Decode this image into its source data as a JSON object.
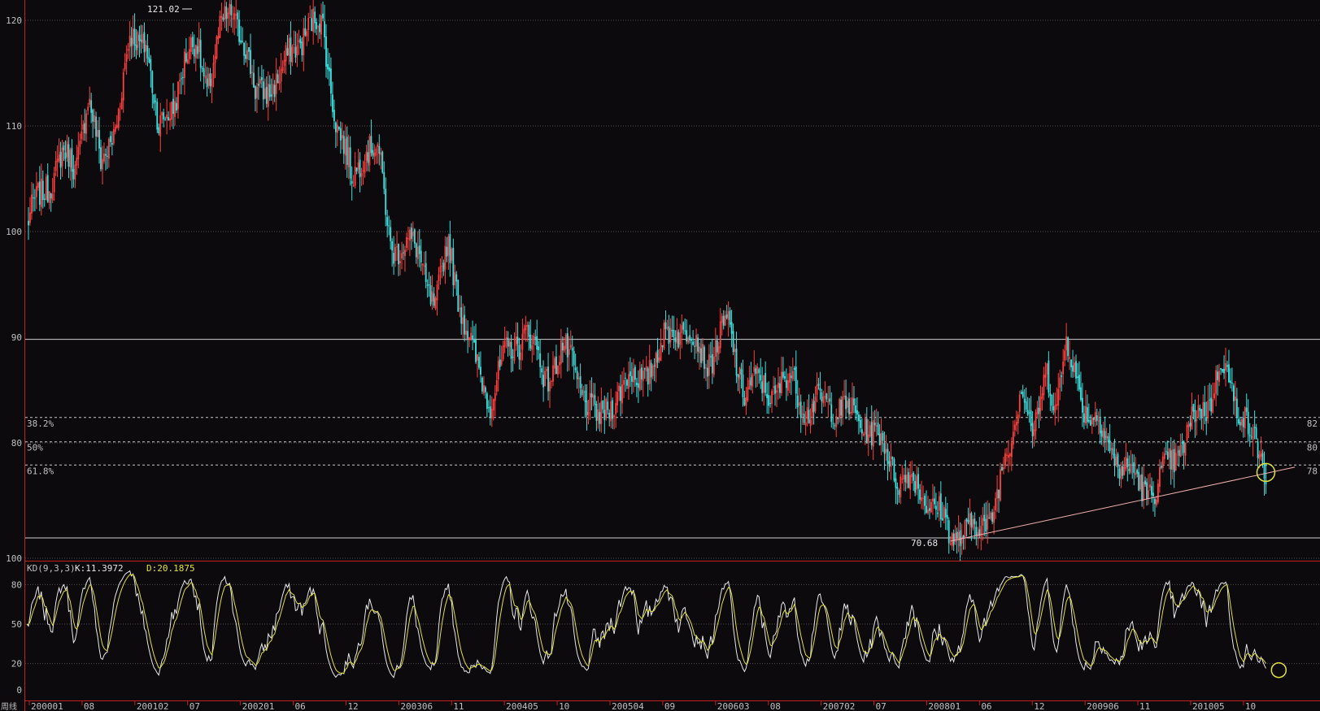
{
  "colors": {
    "background": "#0c0a0c",
    "up": "#ff4040",
    "down": "#40e0e0",
    "axis_text": "#c0c0c0",
    "grid": "#505050",
    "kdj_k": "#e8e8e8",
    "kdj_d": "#e0e040",
    "trendline": "#f0b0b0",
    "marker": "#e0e040",
    "frame": "#c02020"
  },
  "chart_data": [
    {
      "type": "candlestick",
      "period_label": "周线",
      "ylim": [
        70,
        121.5
      ],
      "yticks": [
        {
          "value": 120,
          "label": "120"
        },
        {
          "value": 110,
          "label": "110"
        },
        {
          "value": 100,
          "label": "100"
        },
        {
          "value": 90,
          "label": "90"
        },
        {
          "value": 80,
          "label": "80"
        }
      ],
      "xticks": [
        "200001",
        "08",
        "200102",
        "07",
        "200201",
        "06",
        "12",
        "200306",
        "11",
        "200405",
        "10",
        "200504",
        "09",
        "200603",
        "08",
        "200702",
        "07",
        "200801",
        "06",
        "12",
        "200906",
        "11",
        "201005",
        "10"
      ],
      "annotations": {
        "high": "121.02",
        "low": "70.68"
      },
      "fib_levels": [
        {
          "left": "38.2%",
          "right": "82",
          "value": 82.4
        },
        {
          "left": "50%",
          "right": "80",
          "value": 80.1
        },
        {
          "left": "61.8%",
          "right": "78",
          "value": 77.9
        }
      ],
      "horizontal_lines": [
        89.8,
        71
      ],
      "trendline": {
        "from": {
          "index": 574,
          "value": 70.7
        },
        "to": {
          "index": 788,
          "value": 77.7
        }
      },
      "marker_circle": {
        "index": 770,
        "value": 77.2
      },
      "weekly_close_path": [
        [
          0,
          100.5
        ],
        [
          12,
          104.5
        ],
        [
          22,
          107
        ],
        [
          30,
          106
        ],
        [
          38,
          113
        ],
        [
          46,
          106
        ],
        [
          56,
          111
        ],
        [
          64,
          117.8
        ],
        [
          74,
          118.6
        ],
        [
          82,
          109
        ],
        [
          90,
          112
        ],
        [
          98,
          116
        ],
        [
          106,
          117.5
        ],
        [
          112,
          114
        ],
        [
          120,
          118.5
        ],
        [
          128,
          121
        ],
        [
          134,
          119
        ],
        [
          142,
          112.5
        ],
        [
          150,
          114
        ],
        [
          158,
          114.5
        ],
        [
          166,
          117.5
        ],
        [
          174,
          119.5
        ],
        [
          184,
          119.2
        ],
        [
          192,
          111
        ],
        [
          202,
          104.5
        ],
        [
          210,
          108.5
        ],
        [
          218,
          107.5
        ],
        [
          226,
          99
        ],
        [
          236,
          98.5
        ],
        [
          244,
          98
        ],
        [
          254,
          92.5
        ],
        [
          262,
          99
        ],
        [
          270,
          93
        ],
        [
          278,
          87.5
        ],
        [
          288,
          84.5
        ],
        [
          298,
          88
        ],
        [
          310,
          91
        ],
        [
          322,
          86
        ],
        [
          332,
          89
        ],
        [
          346,
          85
        ],
        [
          356,
          81.5
        ],
        [
          366,
          85
        ],
        [
          378,
          86
        ],
        [
          392,
          88
        ],
        [
          402,
          91.5
        ],
        [
          412,
          90
        ],
        [
          424,
          88
        ],
        [
          436,
          91
        ],
        [
          446,
          85
        ],
        [
          456,
          85.5
        ],
        [
          466,
          85
        ],
        [
          476,
          86
        ],
        [
          486,
          83
        ],
        [
          500,
          84
        ],
        [
          512,
          82.5
        ],
        [
          522,
          82
        ],
        [
          532,
          79.5
        ],
        [
          542,
          77
        ],
        [
          552,
          75.8
        ],
        [
          560,
          75
        ],
        [
          568,
          73
        ],
        [
          574,
          71
        ],
        [
          582,
          72
        ],
        [
          590,
          71.5
        ],
        [
          598,
          73
        ],
        [
          604,
          76
        ],
        [
          612,
          80
        ],
        [
          618,
          86.5
        ],
        [
          626,
          80
        ],
        [
          634,
          87
        ],
        [
          640,
          84
        ],
        [
          646,
          89
        ],
        [
          654,
          85
        ],
        [
          660,
          83
        ],
        [
          668,
          81
        ],
        [
          676,
          79
        ],
        [
          684,
          77
        ],
        [
          694,
          76
        ],
        [
          702,
          75.5
        ],
        [
          710,
          78
        ],
        [
          718,
          80
        ],
        [
          726,
          82
        ],
        [
          734,
          84
        ],
        [
          742,
          87.5
        ],
        [
          750,
          84
        ],
        [
          756,
          83.5
        ],
        [
          762,
          80
        ],
        [
          768,
          77.5
        ],
        [
          770,
          77
        ]
      ]
    },
    {
      "type": "line",
      "indicator": "KD(9,3,3)",
      "k_label": "K:11.3972",
      "d_label": "D:20.1875",
      "ylim": [
        0,
        100
      ],
      "yticks": [
        {
          "value": 100,
          "label": "100"
        },
        {
          "value": 80,
          "label": "80"
        },
        {
          "value": 50,
          "label": "50"
        },
        {
          "value": 20,
          "label": "20"
        },
        {
          "value": 0,
          "label": "0"
        }
      ],
      "marker_circle": {
        "index": 778,
        "value": 15
      }
    }
  ]
}
